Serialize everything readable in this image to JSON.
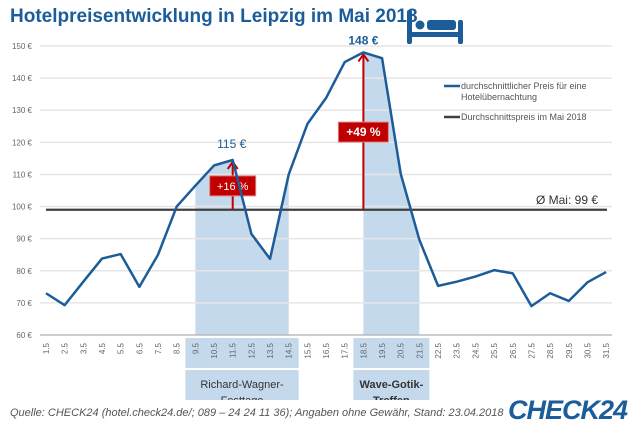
{
  "title": "Hotelpreisentwicklung in Leipzig im Mai 2018",
  "icon": "bed-icon",
  "source": "Quelle: CHECK24 (hotel.check24.de/; 089 – 24 24 11 36); Angaben ohne Gewähr, Stand: 23.04.2018",
  "logo": "CHECK24",
  "colors": {
    "line": "#1c5d99",
    "average": "#404040",
    "highlight": "#c5d9ec",
    "arrow": "#c00000",
    "title": "#1c5d99"
  },
  "chart_data": {
    "type": "line",
    "title": "Hotelpreisentwicklung in Leipzig im Mai 2018",
    "categories": [
      "1.5",
      "2.5",
      "3.5",
      "4.5",
      "5.5",
      "6.5",
      "7.5",
      "8.5",
      "9.5",
      "10.5",
      "11.5",
      "12.5",
      "13.5",
      "14.5",
      "15.5",
      "16.5",
      "17.5",
      "18.5",
      "19.5",
      "20.5",
      "21.5",
      "22.5",
      "23.5",
      "24.5",
      "25.5",
      "26.5",
      "27.5",
      "28.5",
      "29.5",
      "30.5",
      "31.5"
    ],
    "yticks": [
      "60 €",
      "70 €",
      "80 €",
      "90 €",
      "100 €",
      "110 €",
      "120 €",
      "130 €",
      "140 €",
      "150 €"
    ],
    "ylim": [
      60,
      150
    ],
    "grid": true,
    "legend_placement": "top-right",
    "series": [
      {
        "name": "durchschnittlicher Preis für eine Hotelübernachtung",
        "values": [
          73,
          69.3,
          76.6,
          83.8,
          85.2,
          75,
          85,
          100,
          106.5,
          112.8,
          114.5,
          91.5,
          83.7,
          110,
          125.7,
          133.8,
          145,
          148,
          146.2,
          110.2,
          89.6,
          75.3,
          76.6,
          78.2,
          80.2,
          79.2,
          69,
          73,
          70.6,
          76.4,
          79.6
        ]
      },
      {
        "name": "Durchschnittspreis im Mai 2018",
        "value": 99
      }
    ],
    "annotations": {
      "peak1_label": "115 €",
      "peak2_label": "148 €",
      "peak1_pct": "+16 %",
      "peak2_pct": "+49 %",
      "avg_label": "Ø Mai: 99 €"
    },
    "events": [
      {
        "label1": "Richard-Wagner-",
        "label2": "Festtage",
        "from": "9.5",
        "to": "14.5",
        "bold": false
      },
      {
        "label1": "Wave-Gotik-",
        "label2": "Treffen",
        "from": "18.5",
        "to": "21.5",
        "bold": true
      }
    ]
  }
}
